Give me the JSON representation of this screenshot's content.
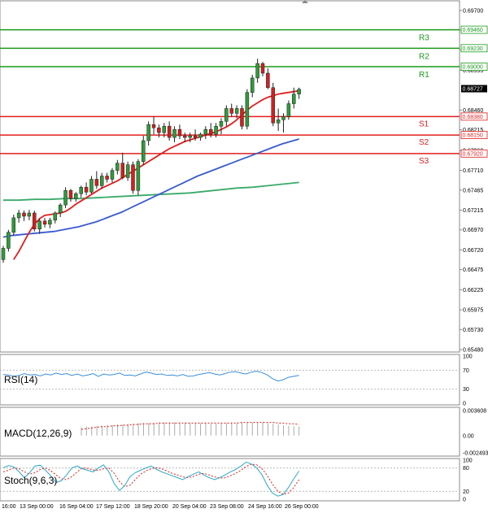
{
  "chart_data": [
    {
      "type": "candlestick",
      "x_labels": [
        "16:00",
        "13 Sep 00:00",
        "16 Sep 04:00",
        "17 Sep 12:00",
        "18 Sep 20:00",
        "20 Sep 04:00",
        "23 Sep 08:00",
        "24 Sep 16:00",
        "26 Sep 00:00"
      ],
      "y_ticks": [
        "0.69700",
        "0.69455",
        "0.69210",
        "0.68955",
        "0.68460",
        "0.68215",
        "0.67960",
        "0.67710",
        "0.67465",
        "0.67215",
        "0.66970",
        "0.66720",
        "0.66475",
        "0.66225",
        "0.65975",
        "0.65730",
        "0.65480"
      ],
      "ylim": [
        0.6545,
        0.6982
      ],
      "candles": [
        [
          0.666,
          0.6677,
          0.6656,
          0.6674
        ],
        [
          0.6674,
          0.6697,
          0.667,
          0.6694
        ],
        [
          0.6694,
          0.6716,
          0.669,
          0.6712
        ],
        [
          0.6712,
          0.6722,
          0.6706,
          0.6718
        ],
        [
          0.6718,
          0.6721,
          0.6708,
          0.6714
        ],
        [
          0.6714,
          0.6722,
          0.6709,
          0.6718
        ],
        [
          0.6718,
          0.6721,
          0.6695,
          0.6698
        ],
        [
          0.6698,
          0.6711,
          0.6692,
          0.6708
        ],
        [
          0.6708,
          0.6712,
          0.67,
          0.6704
        ],
        [
          0.6704,
          0.6712,
          0.6699,
          0.6709
        ],
        [
          0.6709,
          0.672,
          0.6705,
          0.6718
        ],
        [
          0.6718,
          0.673,
          0.6713,
          0.6728
        ],
        [
          0.6728,
          0.675,
          0.6724,
          0.6746
        ],
        [
          0.6746,
          0.6748,
          0.6732,
          0.6736
        ],
        [
          0.6736,
          0.6744,
          0.6732,
          0.6742
        ],
        [
          0.6742,
          0.6752,
          0.6737,
          0.675
        ],
        [
          0.675,
          0.6756,
          0.674,
          0.6744
        ],
        [
          0.6744,
          0.6764,
          0.6742,
          0.676
        ],
        [
          0.676,
          0.677,
          0.6748,
          0.6752
        ],
        [
          0.6752,
          0.6768,
          0.6748,
          0.6764
        ],
        [
          0.6764,
          0.6768,
          0.6756,
          0.676
        ],
        [
          0.676,
          0.6774,
          0.6756,
          0.6771
        ],
        [
          0.6771,
          0.6784,
          0.6766,
          0.678
        ],
        [
          0.678,
          0.6793,
          0.676,
          0.6762
        ],
        [
          0.6762,
          0.6782,
          0.6758,
          0.6778
        ],
        [
          0.6778,
          0.6782,
          0.6742,
          0.6746
        ],
        [
          0.6746,
          0.6785,
          0.674,
          0.6782
        ],
        [
          0.6782,
          0.6814,
          0.6778,
          0.6808
        ],
        [
          0.6808,
          0.6832,
          0.6802,
          0.6828
        ],
        [
          0.6828,
          0.6838,
          0.6816,
          0.6824
        ],
        [
          0.6824,
          0.6828,
          0.6812,
          0.6818
        ],
        [
          0.6818,
          0.683,
          0.6812,
          0.6826
        ],
        [
          0.6826,
          0.6832,
          0.6808,
          0.6812
        ],
        [
          0.6812,
          0.6826,
          0.6806,
          0.6822
        ],
        [
          0.6822,
          0.6828,
          0.681,
          0.6814
        ],
        [
          0.6814,
          0.6818,
          0.6806,
          0.6812
        ],
        [
          0.6812,
          0.6818,
          0.6806,
          0.6814
        ],
        [
          0.6814,
          0.6822,
          0.6808,
          0.6812
        ],
        [
          0.6812,
          0.6818,
          0.6808,
          0.6816
        ],
        [
          0.6816,
          0.6826,
          0.681,
          0.6822
        ],
        [
          0.6822,
          0.683,
          0.6812,
          0.6816
        ],
        [
          0.6816,
          0.683,
          0.6812,
          0.6826
        ],
        [
          0.6826,
          0.6836,
          0.6816,
          0.6832
        ],
        [
          0.6832,
          0.6852,
          0.6826,
          0.6848
        ],
        [
          0.6848,
          0.6854,
          0.6838,
          0.6842
        ],
        [
          0.6842,
          0.6852,
          0.6836,
          0.6848
        ],
        [
          0.6848,
          0.6852,
          0.6822,
          0.6826
        ],
        [
          0.6826,
          0.6872,
          0.6822,
          0.6868
        ],
        [
          0.6868,
          0.689,
          0.6862,
          0.6886
        ],
        [
          0.6886,
          0.691,
          0.688,
          0.6904
        ],
        [
          0.6904,
          0.6906,
          0.6888,
          0.6892
        ],
        [
          0.6892,
          0.6898,
          0.6872,
          0.6874
        ],
        [
          0.6874,
          0.688,
          0.6826,
          0.683
        ],
        [
          0.683,
          0.6848,
          0.682,
          0.6834
        ],
        [
          0.6834,
          0.6842,
          0.6818,
          0.6838
        ],
        [
          0.6838,
          0.6858,
          0.6834,
          0.6854
        ],
        [
          0.6854,
          0.6874,
          0.6848,
          0.6866
        ],
        [
          0.6866,
          0.6874,
          0.686,
          0.6872
        ]
      ],
      "ma_fast": [
        0.666,
        0.667,
        0.6682,
        0.6694,
        0.6704,
        0.6711,
        0.6715,
        0.6716,
        0.6717,
        0.6718,
        0.672,
        0.6724,
        0.6729,
        0.6733,
        0.6737,
        0.6741,
        0.6745,
        0.6749,
        0.6752,
        0.6755,
        0.6758,
        0.6762,
        0.6766,
        0.677,
        0.6774,
        0.6778,
        0.6782,
        0.6786,
        0.679,
        0.6794,
        0.6798,
        0.6801,
        0.6804,
        0.6807,
        0.6809,
        0.6811,
        0.6813,
        0.6815,
        0.6817,
        0.6819,
        0.6822,
        0.6825,
        0.6829,
        0.6834,
        0.684,
        0.6846,
        0.6851,
        0.6855,
        0.6859,
        0.6862,
        0.6864,
        0.6866,
        0.6867,
        0.6868,
        0.6869,
        0.687
      ],
      "ma_mid": [
        0.6688,
        0.669,
        0.6691,
        0.6692,
        0.6693,
        0.6694,
        0.6695,
        0.6697,
        0.6699,
        0.6701,
        0.6704,
        0.6707,
        0.6711,
        0.6715,
        0.6719,
        0.6724,
        0.6729,
        0.6734,
        0.6739,
        0.6744,
        0.6749,
        0.6754,
        0.6759,
        0.6764,
        0.6768,
        0.6772,
        0.6776,
        0.678,
        0.6784,
        0.6788,
        0.6792,
        0.6796,
        0.68,
        0.6804,
        0.6807,
        0.681
      ],
      "ma_slow": [
        0.6734,
        0.6734,
        0.6735,
        0.6735,
        0.6736,
        0.6736,
        0.6737,
        0.6738,
        0.6739,
        0.674,
        0.6741,
        0.6742,
        0.6743,
        0.6745,
        0.6747,
        0.6749,
        0.675,
        0.6752,
        0.6754,
        0.6756
      ],
      "levels": [
        {
          "name": "R3",
          "value": 0.6946,
          "label": "0.69460",
          "kind": "resistance"
        },
        {
          "name": "R2",
          "value": 0.6923,
          "label": "0.69230",
          "kind": "resistance"
        },
        {
          "name": "R1",
          "value": 0.69,
          "label": "0.69000",
          "kind": "resistance"
        },
        {
          "name": "S1",
          "value": 0.6838,
          "label": "0.68380",
          "kind": "support"
        },
        {
          "name": "S2",
          "value": 0.6815,
          "label": "0.68150",
          "kind": "support"
        },
        {
          "name": "S3",
          "value": 0.6792,
          "label": "0.67920",
          "kind": "support"
        }
      ],
      "last_price": {
        "value": 0.68727,
        "label": "0.68727"
      },
      "colors": {
        "up": "#2e9b3a",
        "down": "#d21f1f",
        "resistance": "#1a9a1a",
        "support": "#e01f1f",
        "ma_fast": "#e01f1f",
        "ma_mid": "#3a5bd0",
        "ma_slow": "#3aaa6a"
      }
    },
    {
      "type": "line",
      "title": "RSI(14)",
      "y_ticks": [
        "100",
        "70",
        "30",
        "0"
      ],
      "ylim": [
        0,
        100
      ],
      "values": [
        61,
        60,
        57,
        59,
        63,
        60,
        61,
        58,
        62,
        60,
        64,
        61,
        63,
        59,
        62,
        58,
        60,
        63,
        57,
        62,
        60,
        61,
        64,
        59,
        60,
        58,
        62,
        66,
        64,
        61,
        62,
        59,
        60,
        58,
        61,
        57,
        58,
        61,
        63,
        65,
        62,
        60,
        63,
        66,
        67,
        64,
        62,
        66,
        68,
        65,
        60,
        52,
        47,
        50,
        55,
        57,
        59
      ]
    },
    {
      "type": "bar+line",
      "title": "MACD(12,26,9)",
      "y_ticks": [
        "0.003608",
        "0.00",
        "-0.002493"
      ],
      "ylim": [
        -0.002493,
        0.003608
      ],
      "histogram": [
        0.0012,
        0.0013,
        0.0013,
        0.0014,
        0.0014,
        0.0015,
        0.0015,
        0.0016,
        0.0016,
        0.0017,
        0.0017,
        0.0018,
        0.0018,
        0.0018,
        0.0019,
        0.0019,
        0.0019,
        0.0019,
        0.0019,
        0.0019,
        0.0019,
        0.0018,
        0.0018,
        0.0018,
        0.0018,
        0.0017,
        0.0017,
        0.0018,
        0.0018,
        0.0018,
        0.0018,
        0.0019,
        0.0019,
        0.0019,
        0.0019,
        0.0019,
        0.0018,
        0.0017,
        0.0016,
        0.0015,
        0.0014,
        0.0013,
        0.0013
      ],
      "signal": [
        0.0009,
        0.001,
        0.0011,
        0.0012,
        0.0013,
        0.0013,
        0.0014,
        0.0014,
        0.0015,
        0.0015,
        0.0016,
        0.0016,
        0.0017,
        0.0017,
        0.0017,
        0.0018,
        0.0018,
        0.0018,
        0.0018,
        0.0018,
        0.0018,
        0.0018,
        0.0018,
        0.0018,
        0.0018,
        0.0018,
        0.0018,
        0.0018,
        0.0018,
        0.0018,
        0.0018,
        0.0019,
        0.0019,
        0.0019,
        0.0019,
        0.0019,
        0.0019,
        0.0019,
        0.0018,
        0.0018,
        0.0017,
        0.0017,
        0.0016
      ]
    },
    {
      "type": "line",
      "title": "Stoch(9,6,3)",
      "y_ticks": [
        "100",
        "80",
        "20",
        "0"
      ],
      "ylim": [
        0,
        100
      ],
      "k": [
        80,
        86,
        83,
        70,
        55,
        68,
        85,
        87,
        74,
        60,
        43,
        47,
        62,
        80,
        85,
        78,
        74,
        70,
        80,
        88,
        70,
        40,
        22,
        35,
        58,
        68,
        74,
        80,
        85,
        77,
        70,
        65,
        60,
        55,
        50,
        58,
        64,
        70,
        62,
        55,
        50,
        55,
        62,
        70,
        76,
        85,
        95,
        90,
        80,
        62,
        35,
        15,
        8,
        12,
        30,
        52,
        72
      ],
      "d": [
        70,
        74,
        80,
        78,
        70,
        64,
        68,
        76,
        80,
        73,
        62,
        52,
        50,
        58,
        70,
        80,
        79,
        75,
        74,
        78,
        80,
        66,
        45,
        32,
        36,
        50,
        64,
        72,
        78,
        81,
        78,
        72,
        66,
        62,
        57,
        55,
        58,
        64,
        66,
        62,
        57,
        54,
        55,
        60,
        66,
        74,
        84,
        90,
        88,
        78,
        60,
        38,
        20,
        12,
        16,
        30,
        50
      ]
    }
  ]
}
